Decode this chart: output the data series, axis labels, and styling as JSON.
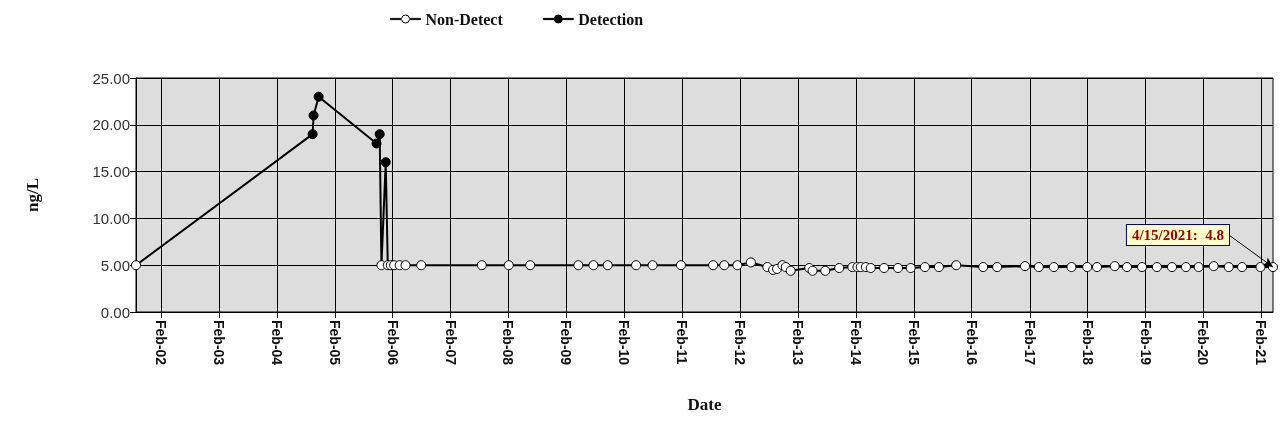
{
  "chart_data": {
    "type": "line",
    "xlabel": "Date",
    "ylabel": "ng/L",
    "grid": true,
    "legend": "top",
    "marker": "circle",
    "xlim": [
      "2001-08-27",
      "2021-04-15"
    ],
    "xticks": [
      {
        "value": "2002-02-01",
        "label": "Feb-02"
      },
      {
        "value": "2003-02-01",
        "label": "Feb-03"
      },
      {
        "value": "2004-02-01",
        "label": "Feb-04"
      },
      {
        "value": "2005-02-01",
        "label": "Feb-05"
      },
      {
        "value": "2006-02-01",
        "label": "Feb-06"
      },
      {
        "value": "2007-02-01",
        "label": "Feb-07"
      },
      {
        "value": "2008-02-01",
        "label": "Feb-08"
      },
      {
        "value": "2009-02-01",
        "label": "Feb-09"
      },
      {
        "value": "2010-02-01",
        "label": "Feb-10"
      },
      {
        "value": "2011-02-01",
        "label": "Feb-11"
      },
      {
        "value": "2012-02-01",
        "label": "Feb-12"
      },
      {
        "value": "2013-02-01",
        "label": "Feb-13"
      },
      {
        "value": "2014-02-01",
        "label": "Feb-14"
      },
      {
        "value": "2015-02-01",
        "label": "Feb-15"
      },
      {
        "value": "2016-02-01",
        "label": "Feb-16"
      },
      {
        "value": "2017-02-01",
        "label": "Feb-17"
      },
      {
        "value": "2018-02-01",
        "label": "Feb-18"
      },
      {
        "value": "2019-02-01",
        "label": "Feb-19"
      },
      {
        "value": "2020-02-01",
        "label": "Feb-20"
      },
      {
        "value": "2021-02-01",
        "label": "Feb-21"
      }
    ],
    "ylim": [
      0,
      25
    ],
    "yticks": [
      {
        "value": 0,
        "label": "0.00"
      },
      {
        "value": 5,
        "label": "5.00"
      },
      {
        "value": 10,
        "label": "10.00"
      },
      {
        "value": 15,
        "label": "15.00"
      },
      {
        "value": 20,
        "label": "20.00"
      },
      {
        "value": 25,
        "label": "25.00"
      }
    ],
    "annotations": [
      {
        "text": "4/15/2021:  4.8",
        "x": "2021-04-15",
        "y": 4.8
      }
    ],
    "series": [
      {
        "type": "line",
        "color": "#000000",
        "marker": "none",
        "x": [
          "2001-08-27",
          "2004-09-14",
          "2004-09-20",
          "2004-10-22",
          "2005-10-22",
          "2005-11-11",
          "2005-11-22",
          "2005-12-19",
          "2006-01-01",
          "2006-01-20",
          "2006-02-10",
          "2006-03-17",
          "2006-04-23",
          "2006-07-31",
          "2007-08-17",
          "2008-02-03",
          "2008-06-17",
          "2009-04-17",
          "2009-07-21",
          "2009-10-19",
          "2010-04-16",
          "2010-07-29",
          "2011-01-24",
          "2011-08-15",
          "2011-10-24",
          "2012-01-15",
          "2012-04-09",
          "2012-07-22",
          "2012-08-27",
          "2012-09-21",
          "2012-10-25",
          "2012-11-15",
          "2012-12-16",
          "2013-04-12",
          "2013-05-03",
          "2013-07-22",
          "2013-10-18",
          "2014-01-09",
          "2014-02-10",
          "2014-03-03",
          "2014-04-04",
          "2014-05-05",
          "2014-07-28",
          "2014-10-24",
          "2015-01-12",
          "2015-04-12",
          "2015-07-09",
          "2015-10-26",
          "2016-04-13",
          "2016-07-10",
          "2017-01-02",
          "2017-03-30",
          "2017-07-03",
          "2017-10-22",
          "2018-01-29",
          "2018-04-01",
          "2018-07-22",
          "2018-10-07",
          "2019-01-10",
          "2019-04-14",
          "2019-07-18",
          "2019-10-14",
          "2020-01-02",
          "2020-04-06",
          "2020-07-10",
          "2020-10-02",
          "2021-01-26",
          "2021-04-15"
        ],
        "values": [
          5,
          19,
          21,
          23,
          18,
          19,
          5,
          16,
          5,
          5,
          5,
          5,
          5,
          5,
          5,
          5,
          5,
          5,
          5,
          5,
          5,
          5,
          5,
          5,
          5,
          5,
          5.3,
          4.8,
          4.5,
          4.6,
          5.0,
          4.8,
          4.4,
          4.7,
          4.4,
          4.4,
          4.7,
          4.8,
          4.8,
          4.8,
          4.8,
          4.7,
          4.7,
          4.7,
          4.7,
          4.8,
          4.8,
          5.0,
          4.8,
          4.8,
          4.9,
          4.8,
          4.8,
          4.8,
          4.8,
          4.8,
          4.9,
          4.8,
          4.8,
          4.8,
          4.8,
          4.8,
          4.8,
          4.9,
          4.8,
          4.8,
          4.8,
          4.8
        ]
      },
      {
        "name": "Non-Detect",
        "type": "scatter",
        "color": "#ffffff",
        "x": [
          "2001-08-27",
          "2005-11-22",
          "2006-01-01",
          "2006-01-20",
          "2006-02-10",
          "2006-03-17",
          "2006-04-23",
          "2006-07-31",
          "2007-08-17",
          "2008-02-03",
          "2008-06-17",
          "2009-04-17",
          "2009-07-21",
          "2009-10-19",
          "2010-04-16",
          "2010-07-29",
          "2011-01-24",
          "2011-08-15",
          "2011-10-24",
          "2012-01-15",
          "2012-04-09",
          "2012-07-22",
          "2012-08-27",
          "2012-09-21",
          "2012-10-25",
          "2012-11-15",
          "2012-12-16",
          "2013-04-12",
          "2013-05-03",
          "2013-07-22",
          "2013-10-18",
          "2014-01-09",
          "2014-02-10",
          "2014-03-03",
          "2014-04-04",
          "2014-05-05",
          "2014-07-28",
          "2014-10-24",
          "2015-01-12",
          "2015-04-12",
          "2015-07-09",
          "2015-10-26",
          "2016-04-13",
          "2016-07-10",
          "2017-01-02",
          "2017-03-30",
          "2017-07-03",
          "2017-10-22",
          "2018-01-29",
          "2018-04-01",
          "2018-07-22",
          "2018-10-07",
          "2019-01-10",
          "2019-04-14",
          "2019-07-18",
          "2019-10-14",
          "2020-01-02",
          "2020-04-06",
          "2020-07-10",
          "2020-10-02",
          "2021-01-26",
          "2021-04-15"
        ],
        "values": [
          5,
          5,
          5,
          5,
          5,
          5,
          5,
          5,
          5,
          5,
          5,
          5,
          5,
          5,
          5,
          5,
          5,
          5,
          5,
          5,
          5.3,
          4.8,
          4.5,
          4.6,
          5.0,
          4.8,
          4.4,
          4.7,
          4.4,
          4.4,
          4.7,
          4.8,
          4.8,
          4.8,
          4.8,
          4.7,
          4.7,
          4.7,
          4.7,
          4.8,
          4.8,
          5.0,
          4.8,
          4.8,
          4.9,
          4.8,
          4.8,
          4.8,
          4.8,
          4.8,
          4.9,
          4.8,
          4.8,
          4.8,
          4.8,
          4.8,
          4.8,
          4.9,
          4.8,
          4.8,
          4.8,
          4.8
        ]
      },
      {
        "name": "Detection",
        "type": "scatter",
        "color": "#000000",
        "x": [
          "2004-09-14",
          "2004-09-20",
          "2004-10-22",
          "2005-10-22",
          "2005-11-11",
          "2005-12-19"
        ],
        "values": [
          19,
          21,
          23,
          18,
          19,
          16
        ]
      }
    ]
  }
}
